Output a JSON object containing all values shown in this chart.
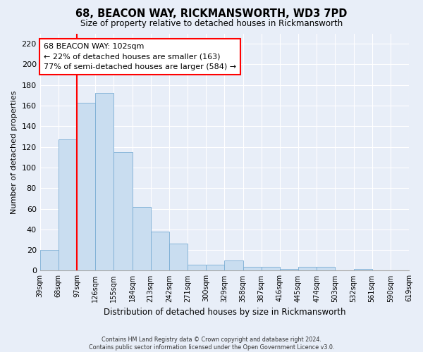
{
  "title": "68, BEACON WAY, RICKMANSWORTH, WD3 7PD",
  "subtitle": "Size of property relative to detached houses in Rickmansworth",
  "xlabel": "Distribution of detached houses by size in Rickmansworth",
  "ylabel": "Number of detached properties",
  "bar_color": "#c9ddf0",
  "bar_edge_color": "#7aadd4",
  "bin_edges": [
    "39sqm",
    "68sqm",
    "97sqm",
    "126sqm",
    "155sqm",
    "184sqm",
    "213sqm",
    "242sqm",
    "271sqm",
    "300sqm",
    "329sqm",
    "358sqm",
    "387sqm",
    "416sqm",
    "445sqm",
    "474sqm",
    "503sqm",
    "532sqm",
    "561sqm",
    "590sqm",
    "619sqm"
  ],
  "bar_heights": [
    20,
    127,
    163,
    172,
    115,
    62,
    38,
    26,
    6,
    6,
    10,
    4,
    4,
    2,
    4,
    4,
    0,
    2,
    0,
    0
  ],
  "ylim": [
    0,
    230
  ],
  "yticks": [
    0,
    20,
    40,
    60,
    80,
    100,
    120,
    140,
    160,
    180,
    200,
    220
  ],
  "annotation_text_line1": "68 BEACON WAY: 102sqm",
  "annotation_text_line2": "← 22% of detached houses are smaller (163)",
  "annotation_text_line3": "77% of semi-detached houses are larger (584) →",
  "vline_index": 2,
  "background_color": "#e8eef8",
  "grid_color": "#ffffff",
  "footer_line1": "Contains HM Land Registry data © Crown copyright and database right 2024.",
  "footer_line2": "Contains public sector information licensed under the Open Government Licence v3.0."
}
